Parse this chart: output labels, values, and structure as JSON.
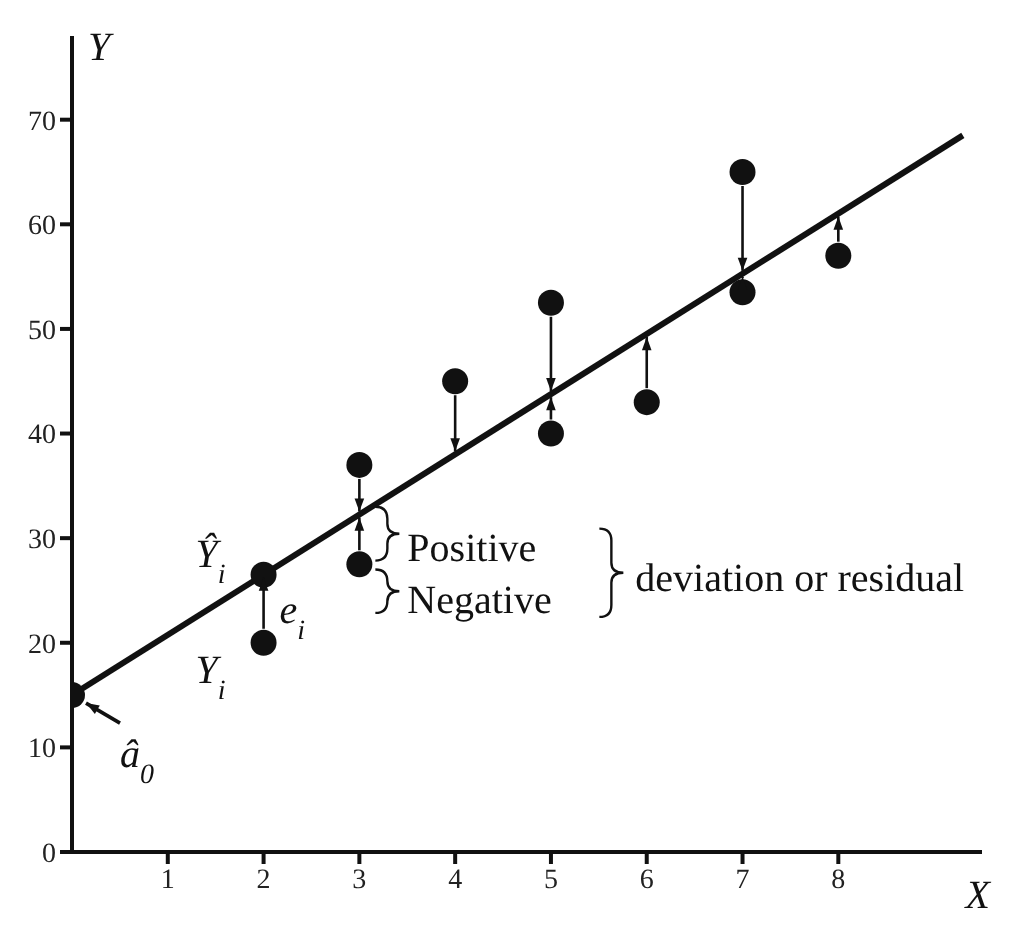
{
  "chart_data": {
    "type": "scatter",
    "xlabel": "X",
    "ylabel": "Y",
    "xlim": [
      0,
      9.5
    ],
    "ylim": [
      0,
      78
    ],
    "xticks": [
      1,
      2,
      3,
      4,
      5,
      6,
      7,
      8
    ],
    "yticks": [
      0,
      10,
      20,
      30,
      40,
      50,
      60,
      70
    ],
    "marker": "circle",
    "series": [
      {
        "color": "#111111",
        "x": [
          2,
          3,
          3,
          4,
          5,
          5,
          6,
          7,
          7,
          8
        ],
        "values": [
          20,
          37,
          27.5,
          45,
          52.5,
          40,
          43,
          65,
          53.5,
          57
        ]
      },
      {
        "color": "#111111",
        "x": [
          0,
          2
        ],
        "values": [
          15,
          26.5
        ]
      },
      {
        "type": "line",
        "color": "#111111",
        "marker": "none",
        "x": [
          0,
          9.3
        ],
        "values": [
          15,
          68.5
        ]
      }
    ],
    "annotations": [
      "Ŷ$_{i}$",
      "Y$_{i}$",
      "â$_{0}$",
      "e$_{i}$",
      "Positive",
      "Negative",
      "deviation or residual"
    ]
  }
}
